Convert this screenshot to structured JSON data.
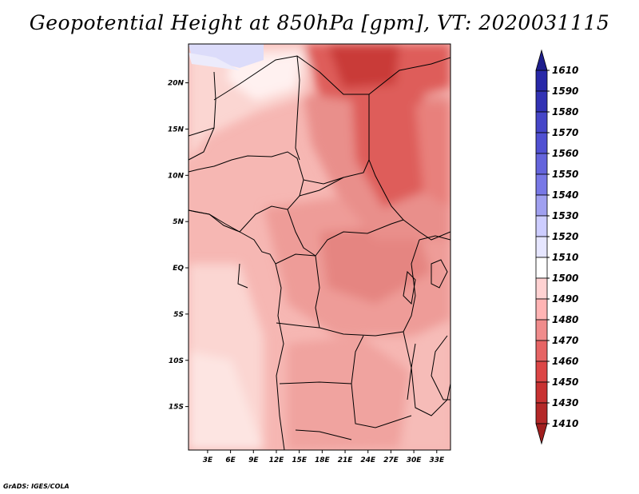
{
  "title": "Geopotential Height at 850hPa [gpm], VT: 2020031115",
  "credit": "GrADS: IGES/COLA",
  "map": {
    "lat_labels": [
      "20N",
      "15N",
      "10N",
      "5N",
      "EQ",
      "5S",
      "10S",
      "15S"
    ],
    "lat_values": [
      20,
      15,
      10,
      5,
      0,
      -5,
      -10,
      -15
    ],
    "lon_labels": [
      "3E",
      "6E",
      "9E",
      "12E",
      "15E",
      "18E",
      "21E",
      "24E",
      "27E",
      "30E",
      "33E"
    ],
    "lon_values": [
      3,
      6,
      9,
      12,
      15,
      18,
      21,
      24,
      27,
      30,
      33
    ],
    "lon_range": [
      0.5,
      34.8
    ],
    "lat_range": [
      -19.7,
      24.2
    ]
  },
  "colorbar": {
    "levels": [
      "1610",
      "1590",
      "1580",
      "1570",
      "1560",
      "1550",
      "1540",
      "1530",
      "1520",
      "1510",
      "1500",
      "1490",
      "1480",
      "1470",
      "1460",
      "1450",
      "1430",
      "1410"
    ],
    "colors": [
      "#1e1e8c",
      "#2828a8",
      "#3232b4",
      "#4646c8",
      "#5050d2",
      "#6464dc",
      "#7878e6",
      "#a0a0f0",
      "#cdcdff",
      "#e6e6ff",
      "#ffffff",
      "#ffd2d2",
      "#ffb4b4",
      "#f08c8c",
      "#e66464",
      "#dc4646",
      "#c83232",
      "#b42828",
      "#a01e1e"
    ]
  }
}
